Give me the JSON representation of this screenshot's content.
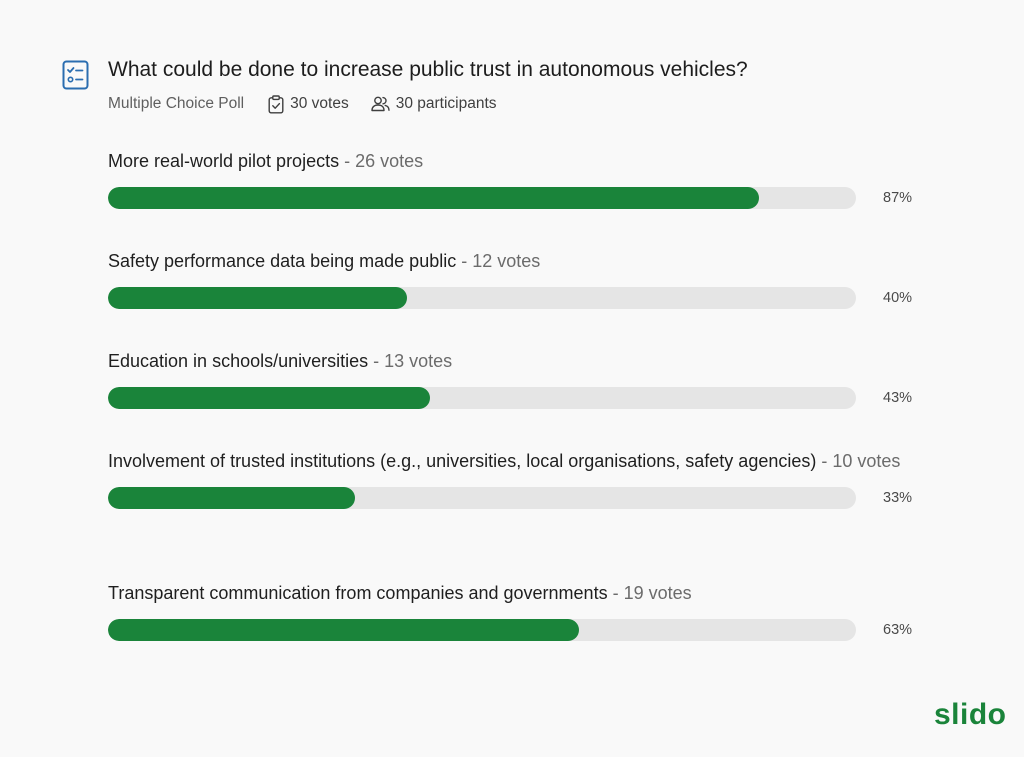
{
  "poll": {
    "question": "What could be done to increase public trust in autonomous vehicles?",
    "type_label": "Multiple Choice Poll",
    "votes_label": "30 votes",
    "participants_label": "30 participants",
    "icon": "checklist-icon"
  },
  "options": [
    {
      "label": "More real-world pilot projects",
      "votes": " - 26 votes",
      "percent": 87,
      "percent_label": "87%"
    },
    {
      "label": "Safety performance data being made public",
      "votes": " - 12 votes",
      "percent": 40,
      "percent_label": "40%"
    },
    {
      "label": "Education in schools/universities",
      "votes": " - 13 votes",
      "percent": 43,
      "percent_label": "43%"
    },
    {
      "label": "Involvement of trusted institutions (e.g., universities, local organisations, safety agencies)",
      "votes": " - 10 votes",
      "percent": 33,
      "percent_label": "33%"
    },
    {
      "label": "Transparent communication from companies and governments",
      "votes": " - 19 votes",
      "percent": 63,
      "percent_label": "63%"
    }
  ],
  "brand": {
    "name": "slido"
  },
  "colors": {
    "accent": "#1a843a",
    "track": "#e5e5e5",
    "icon": "#2a6db0"
  }
}
